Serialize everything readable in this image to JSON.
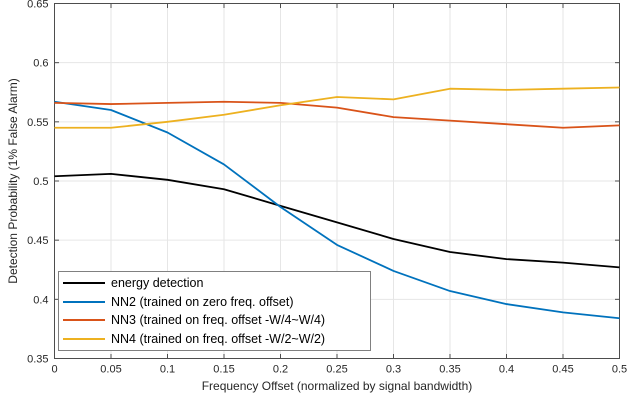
{
  "figure": {
    "background_color": "#ffffff",
    "grid_color": "#e6e6e6",
    "axis_color": "#4d4d4d",
    "tick_label_color": "#262626"
  },
  "chart_data": {
    "type": "line",
    "title": "",
    "xlabel": "Frequency Offset (normalized by signal bandwidth)",
    "ylabel": "Detection Probability (1% False Alarm)",
    "xlim": [
      0,
      0.5
    ],
    "ylim": [
      0.35,
      0.65
    ],
    "grid": true,
    "legend_position": "inside-bottom-left",
    "x_ticks": [
      0,
      0.05,
      0.1,
      0.15,
      0.2,
      0.25,
      0.3,
      0.35,
      0.4,
      0.45,
      0.5
    ],
    "x_tick_labels": [
      "0",
      "0.05",
      "0.1",
      "0.15",
      "0.2",
      "0.25",
      "0.3",
      "0.35",
      "0.4",
      "0.45",
      "0.5"
    ],
    "y_ticks": [
      0.35,
      0.4,
      0.45,
      0.5,
      0.55,
      0.6,
      0.65
    ],
    "y_tick_labels": [
      "0.35",
      "0.4",
      "0.45",
      "0.5",
      "0.55",
      "0.6",
      "0.65"
    ],
    "x": [
      0,
      0.05,
      0.1,
      0.15,
      0.2,
      0.25,
      0.3,
      0.35,
      0.4,
      0.45,
      0.5
    ],
    "series": [
      {
        "name": "energy detection",
        "color": "#000000",
        "values": [
          0.504,
          0.506,
          0.501,
          0.493,
          0.479,
          0.465,
          0.451,
          0.44,
          0.434,
          0.431,
          0.427
        ]
      },
      {
        "name": "NN2 (trained on zero freq. offset)",
        "color": "#0072BD",
        "values": [
          0.567,
          0.56,
          0.541,
          0.514,
          0.478,
          0.446,
          0.424,
          0.407,
          0.396,
          0.389,
          0.384
        ]
      },
      {
        "name": "NN3 (trained on freq. offset -W/4~W/4)",
        "color": "#D95319",
        "values": [
          0.566,
          0.565,
          0.566,
          0.567,
          0.566,
          0.562,
          0.554,
          0.551,
          0.548,
          0.545,
          0.547
        ]
      },
      {
        "name": "NN4 (trained on freq. offset -W/2~W/2)",
        "color": "#EDB120",
        "values": [
          0.545,
          0.545,
          0.55,
          0.556,
          0.564,
          0.571,
          0.569,
          0.578,
          0.577,
          0.578,
          0.579
        ]
      }
    ]
  }
}
